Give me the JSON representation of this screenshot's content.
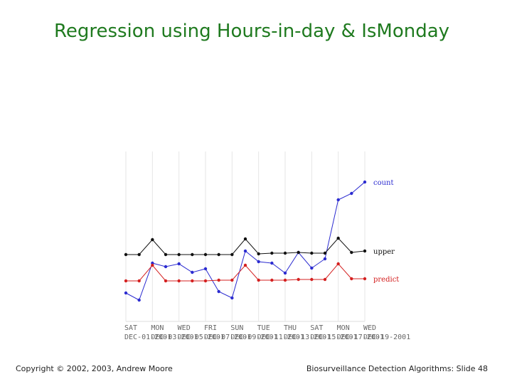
{
  "chart_data": {
    "type": "line",
    "title": "Regression using Hours-in-day & IsMonday",
    "categories": [
      "DEC-01-2001",
      null,
      "DEC-03-2001",
      null,
      "DEC-05-2001",
      null,
      "DEC-07-2001",
      null,
      "DEC-09-2001",
      null,
      "DEC-11-2001",
      null,
      "DEC-13-2001",
      null,
      "DEC-15-2001",
      null,
      "DEC-17-2001",
      null,
      "DEC-19-2001"
    ],
    "weekday_labels": [
      "SAT",
      null,
      "MON",
      null,
      "WED",
      null,
      "FRI",
      null,
      "SUN",
      null,
      "TUE",
      null,
      "THU",
      null,
      "SAT",
      null,
      "MON",
      null,
      "WED"
    ],
    "ylim": [
      0,
      240
    ],
    "series": [
      {
        "name": "count",
        "color": "#2b2bd0",
        "values": [
          38,
          28,
          80,
          75,
          79,
          67,
          72,
          40,
          31,
          97,
          82,
          80,
          66,
          95,
          73,
          86,
          169,
          178,
          194
        ]
      },
      {
        "name": "upper",
        "color": "#111111",
        "values": [
          92,
          92,
          113,
          92,
          92,
          92,
          92,
          92,
          92,
          114,
          93,
          94,
          94,
          95,
          94,
          94,
          115,
          95,
          97
        ]
      },
      {
        "name": "predict",
        "color": "#d42020",
        "values": [
          55,
          55,
          77,
          55,
          55,
          55,
          55,
          56,
          56,
          77,
          56,
          56,
          56,
          57,
          57,
          57,
          79,
          58,
          58
        ]
      }
    ]
  },
  "footer": {
    "left": "Copyright © 2002, 2003, Andrew Moore",
    "right": "Biosurveillance Detection Algorithms: Slide 48"
  }
}
